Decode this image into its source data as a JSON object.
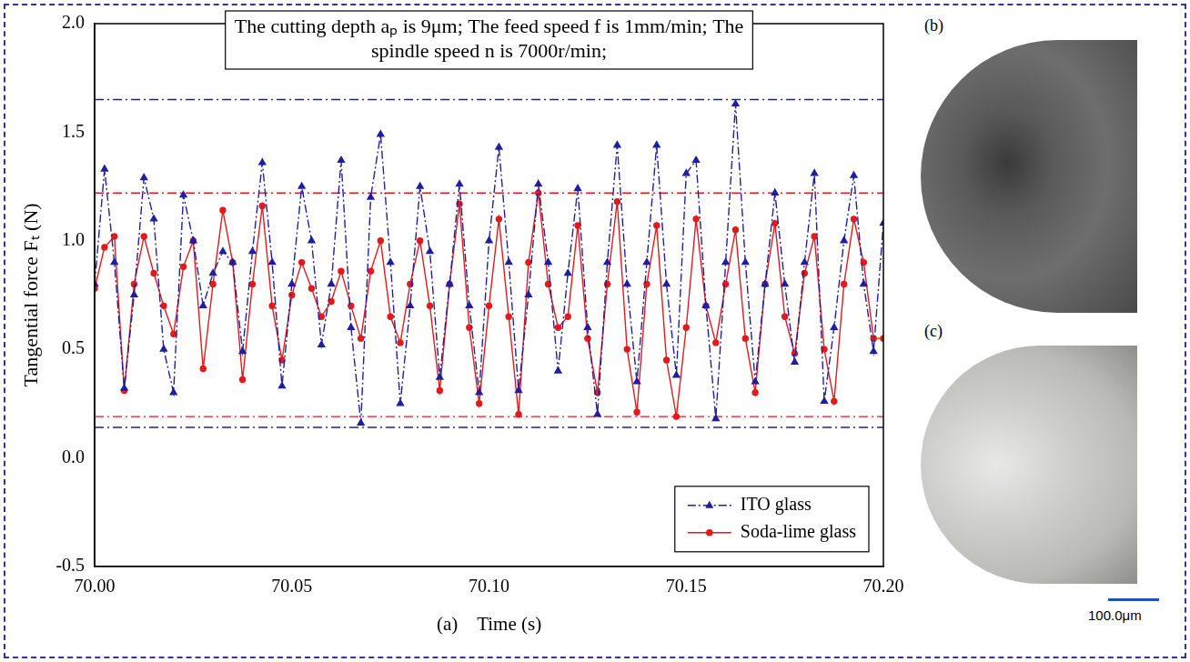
{
  "chart_data": {
    "type": "line",
    "annotation": "The cutting depth aₚ is 9μm; The feed speed f is 1mm/min; The spindle speed n is 7000r/min;",
    "panel_label": "(a)",
    "x_label": "Time (s)",
    "y_label": "Tangential force Fₜ (N)",
    "x": [
      70,
      70.0025,
      70.005,
      70.0075,
      70.01,
      70.0125,
      70.015,
      70.0175,
      70.02,
      70.0225,
      70.025,
      70.0275,
      70.03,
      70.0325,
      70.035,
      70.0375,
      70.04,
      70.0425,
      70.045,
      70.0475,
      70.05,
      70.0525,
      70.055,
      70.0575,
      70.06,
      70.0625,
      70.065,
      70.0675,
      70.07,
      70.0725,
      70.075,
      70.0775,
      70.08,
      70.0825,
      70.085,
      70.0875,
      70.09,
      70.0925,
      70.095,
      70.0975,
      70.1,
      70.1025,
      70.105,
      70.1075,
      70.11,
      70.1125,
      70.115,
      70.1175,
      70.12,
      70.1225,
      70.125,
      70.1275,
      70.13,
      70.1325,
      70.135,
      70.1375,
      70.14,
      70.1425,
      70.145,
      70.1475,
      70.15,
      70.1525,
      70.155,
      70.1575,
      70.16,
      70.1625,
      70.165,
      70.1675,
      70.17,
      70.1725,
      70.175,
      70.1775,
      70.18,
      70.1825,
      70.185,
      70.1875,
      70.19,
      70.1925,
      70.195,
      70.1975,
      70.2
    ],
    "series": [
      {
        "name": "ITO glass",
        "color": "#1f1f9e",
        "marker": "triangle",
        "line_style": "dashdot",
        "upper_bound": 1.65,
        "lower_bound": 0.14,
        "values": [
          0.8,
          1.33,
          0.9,
          0.32,
          0.75,
          1.29,
          1.1,
          0.5,
          0.3,
          1.21,
          1.0,
          0.7,
          0.85,
          0.95,
          0.9,
          0.49,
          0.95,
          1.36,
          0.9,
          0.33,
          0.8,
          1.25,
          1.0,
          0.52,
          0.8,
          1.37,
          0.6,
          0.16,
          1.2,
          1.49,
          0.9,
          0.25,
          0.7,
          1.25,
          0.95,
          0.37,
          0.8,
          1.26,
          0.7,
          0.3,
          1.0,
          1.43,
          0.9,
          0.31,
          0.75,
          1.26,
          0.9,
          0.4,
          0.85,
          1.24,
          0.6,
          0.2,
          0.9,
          1.44,
          0.8,
          0.35,
          0.9,
          1.44,
          0.8,
          0.38,
          1.31,
          1.37,
          0.7,
          0.18,
          0.9,
          1.63,
          0.9,
          0.35,
          0.8,
          1.22,
          0.8,
          0.44,
          0.9,
          1.31,
          0.26,
          0.6,
          1.0,
          1.3,
          0.8,
          0.49,
          1.08
        ]
      },
      {
        "name": "Soda-lime glass",
        "color": "#e31a1c",
        "marker": "circle",
        "line_style": "solid",
        "upper_bound": 1.22,
        "lower_bound": 0.19,
        "values": [
          0.78,
          0.97,
          1.02,
          0.31,
          0.8,
          1.02,
          0.85,
          0.7,
          0.57,
          0.88,
          1.0,
          0.41,
          0.8,
          1.14,
          0.9,
          0.36,
          0.8,
          1.16,
          0.7,
          0.45,
          0.75,
          0.9,
          0.78,
          0.65,
          0.72,
          0.86,
          0.7,
          0.55,
          0.86,
          1.0,
          0.65,
          0.53,
          0.8,
          1.0,
          0.7,
          0.31,
          0.8,
          1.17,
          0.6,
          0.25,
          0.7,
          1.1,
          0.65,
          0.2,
          0.9,
          1.22,
          0.8,
          0.6,
          0.65,
          1.07,
          0.55,
          0.3,
          0.8,
          1.18,
          0.5,
          0.21,
          0.8,
          1.07,
          0.45,
          0.19,
          0.6,
          1.1,
          0.7,
          0.53,
          0.8,
          1.05,
          0.55,
          0.3,
          0.8,
          1.08,
          0.65,
          0.48,
          0.85,
          1.02,
          0.5,
          0.26,
          0.8,
          1.1,
          0.9,
          0.55,
          0.55
        ]
      }
    ],
    "xlim": [
      70,
      70.2
    ],
    "xticks": [
      {
        "value": 70,
        "label": "70.00"
      },
      {
        "value": 70.05,
        "label": "70.05"
      },
      {
        "value": 70.1,
        "label": "70.10"
      },
      {
        "value": 70.15,
        "label": "70.15"
      },
      {
        "value": 70.2,
        "label": "70.20"
      }
    ],
    "ylim": [
      -0.5,
      2.0
    ],
    "yticks": [
      -0.5,
      {
        "value": 0,
        "label": "0.0"
      },
      0.5,
      {
        "value": 1,
        "label": "1.0"
      },
      1.5,
      {
        "value": 2,
        "label": "2.0"
      }
    ],
    "grid": false,
    "legend": "lower right"
  },
  "images": [
    {
      "label": "(b)"
    },
    {
      "label": "(c)"
    }
  ],
  "scale_bar": "100.0μm"
}
